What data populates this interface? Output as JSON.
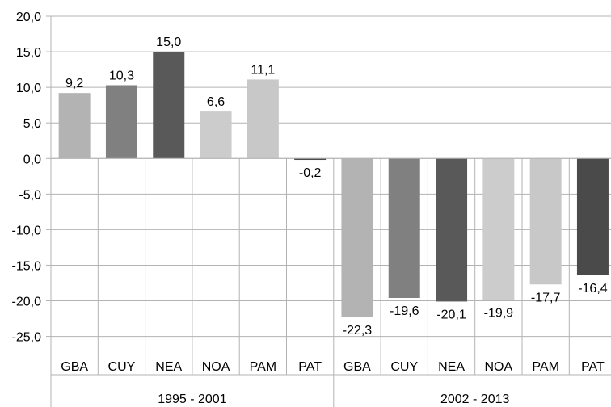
{
  "chart_data": {
    "type": "bar",
    "title": "",
    "xlabel": "",
    "ylabel": "",
    "ylim": [
      -25,
      20
    ],
    "yticks": [
      "20,0",
      "15,0",
      "10,0",
      "5,0",
      "0,0",
      "-5,0",
      "-10,0",
      "-15,0",
      "-20,0",
      "-25,0"
    ],
    "ytick_values": [
      20,
      15,
      10,
      5,
      0,
      -5,
      -10,
      -15,
      -20,
      -25
    ],
    "grid": true,
    "legend": "none",
    "groups": [
      {
        "label": "1995 - 2001",
        "categories": [
          "GBA",
          "CUY",
          "NEA",
          "NOA",
          "PAM",
          "PAT"
        ],
        "values": [
          9.2,
          10.3,
          15.0,
          6.6,
          11.1,
          -0.2
        ],
        "value_labels": [
          "9,2",
          "10,3",
          "15,0",
          "6,6",
          "11,1",
          "-0,2"
        ]
      },
      {
        "label": "2002 - 2013",
        "categories": [
          "GBA",
          "CUY",
          "NEA",
          "NOA",
          "PAM",
          "PAT"
        ],
        "values": [
          -22.3,
          -19.6,
          -20.1,
          -19.9,
          -17.7,
          -16.4
        ],
        "value_labels": [
          "-22,3",
          "-19,6",
          "-20,1",
          "-19,9",
          "-17,7",
          "-16,4"
        ]
      }
    ],
    "category_colors": {
      "GBA": "#b3b3b3",
      "CUY": "#808080",
      "NEA": "#595959",
      "NOA": "#cccccc",
      "PAM": "#c8c8c8",
      "PAT": "#4a4a4a"
    },
    "gridline_color": "#b3b3b3",
    "axis_color": "#b3b3b3"
  }
}
